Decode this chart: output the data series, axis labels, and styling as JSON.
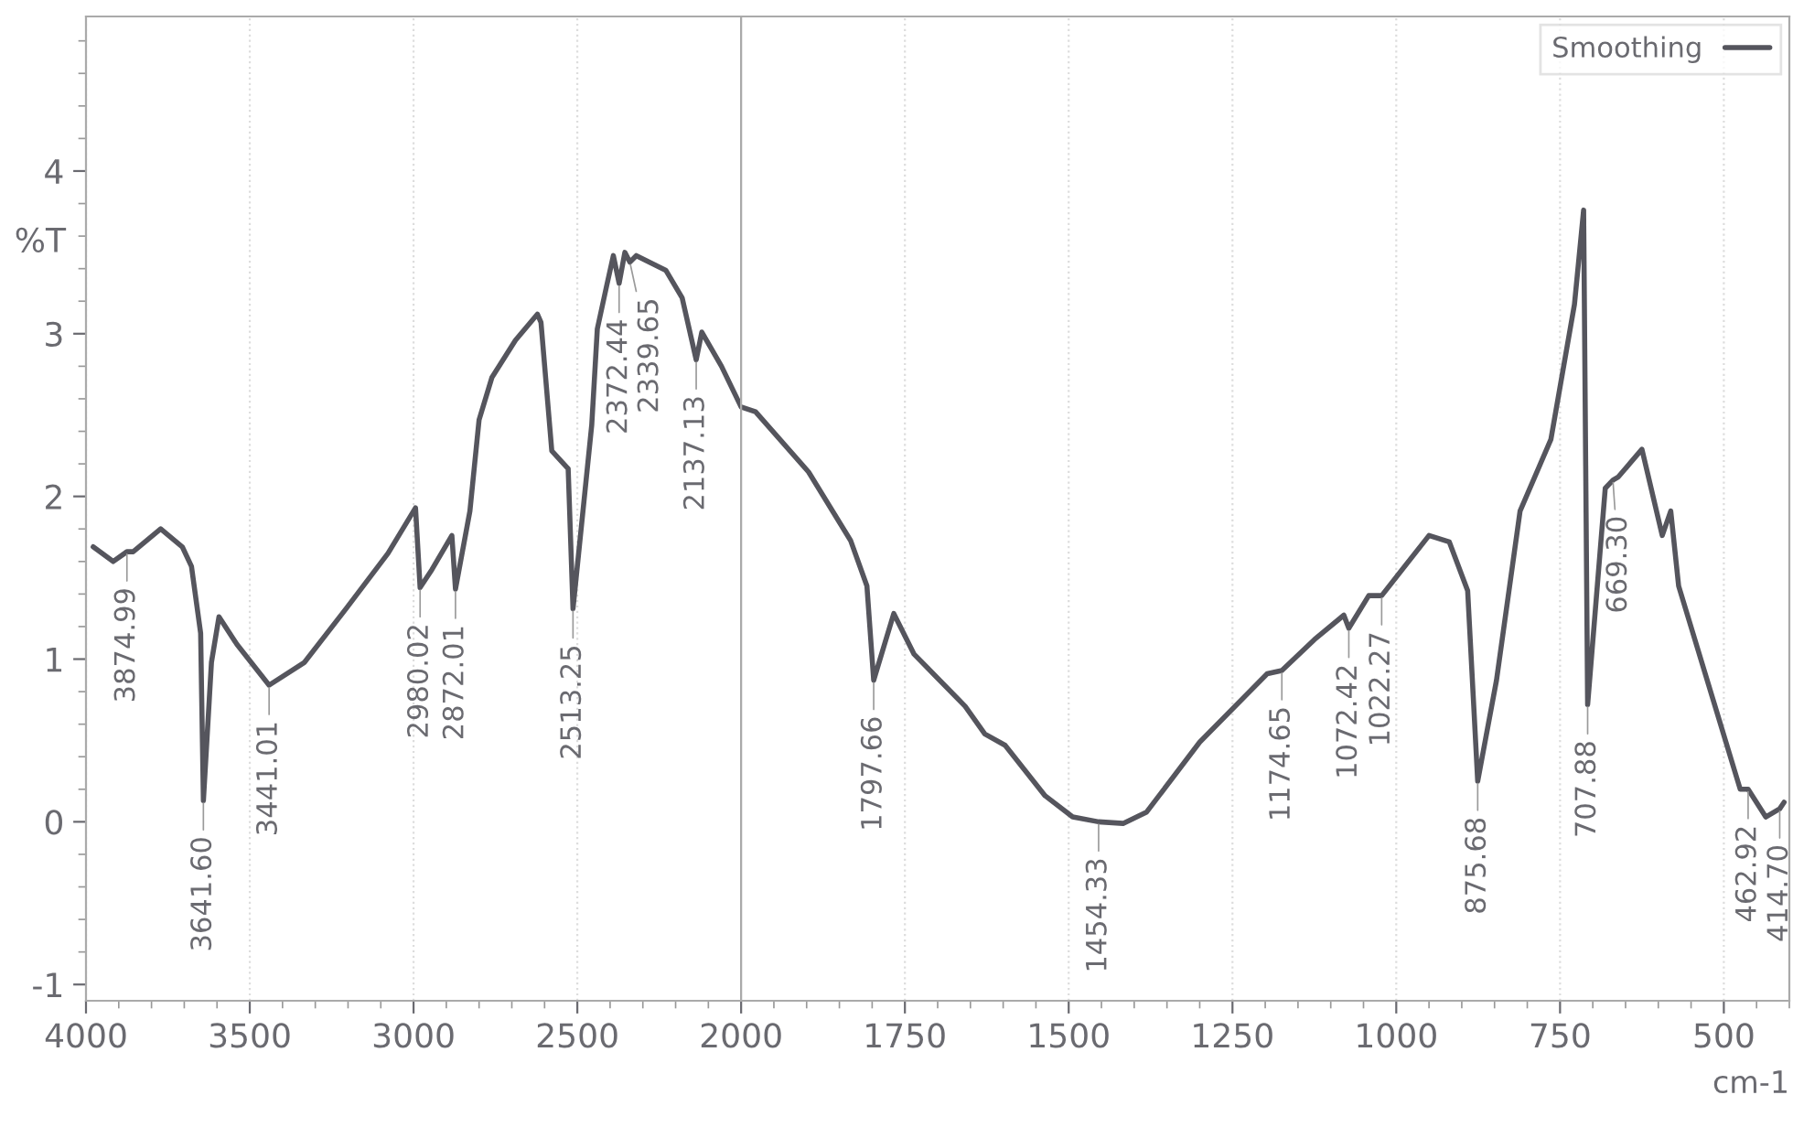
{
  "chart_data": [
    {
      "type": "line",
      "ylabel": "%T",
      "grid": "x",
      "xlim": [
        4000,
        2000
      ],
      "ylim": [
        -1.1,
        4.95
      ],
      "xticks": [
        4000,
        {
          "value": 3900,
          "label": null
        },
        {
          "value": 3800,
          "label": null
        },
        {
          "value": 3700,
          "label": null
        },
        {
          "value": 3600,
          "label": null
        },
        3500,
        {
          "value": 3400,
          "label": null
        },
        {
          "value": 3300,
          "label": null
        },
        {
          "value": 3200,
          "label": null
        },
        {
          "value": 3100,
          "label": null
        },
        3000,
        {
          "value": 2900,
          "label": null
        },
        {
          "value": 2800,
          "label": null
        },
        {
          "value": 2700,
          "label": null
        },
        {
          "value": 2600,
          "label": null
        },
        2500,
        {
          "value": 2400,
          "label": null
        },
        {
          "value": 2300,
          "label": null
        },
        {
          "value": 2200,
          "label": null
        },
        {
          "value": 2100,
          "label": null
        },
        2000
      ],
      "yticks": [
        -1,
        {
          "value": -0.8,
          "label": null
        },
        {
          "value": -0.6,
          "label": null
        },
        {
          "value": -0.4,
          "label": null
        },
        {
          "value": -0.2,
          "label": null
        },
        0,
        {
          "value": 0.2,
          "label": null
        },
        {
          "value": 0.4,
          "label": null
        },
        {
          "value": 0.6,
          "label": null
        },
        {
          "value": 0.8,
          "label": null
        },
        1,
        {
          "value": 1.2,
          "label": null
        },
        {
          "value": 1.4,
          "label": null
        },
        {
          "value": 1.6,
          "label": null
        },
        {
          "value": 1.8,
          "label": null
        },
        2,
        {
          "value": 2.2,
          "label": null
        },
        {
          "value": 2.4,
          "label": null
        },
        {
          "value": 2.6,
          "label": null
        },
        {
          "value": 2.8,
          "label": null
        },
        3,
        {
          "value": 3.2,
          "label": null
        },
        {
          "value": 3.4,
          "label": null
        },
        {
          "value": 3.6,
          "label": null
        },
        {
          "value": 3.8,
          "label": null
        },
        4,
        {
          "value": 4.2,
          "label": null
        },
        {
          "value": 4.4,
          "label": null
        },
        {
          "value": 4.6,
          "label": null
        },
        {
          "value": 4.8,
          "label": null
        }
      ],
      "series": [
        {
          "color": "#55555d",
          "x": [
            3978,
            3917,
            3874.99,
            3856,
            3772,
            3706,
            3678,
            3650,
            3641.6,
            3617,
            3594,
            3539,
            3441.01,
            3333,
            3206,
            3078,
            2994,
            2980.02,
            2944,
            2883,
            2872.01,
            2828,
            2800,
            2761,
            2689,
            2622,
            2611,
            2578,
            2528,
            2513.25,
            2456,
            2439,
            2411,
            2390,
            2372.44,
            2355,
            2339.65,
            2320,
            2230,
            2180,
            2137.13,
            2120,
            2060,
            2000
          ],
          "values": [
            1.69,
            1.6,
            1.66,
            1.66,
            1.8,
            1.69,
            1.57,
            1.16,
            0.13,
            0.98,
            1.26,
            1.09,
            0.84,
            0.98,
            1.31,
            1.65,
            1.93,
            1.44,
            1.55,
            1.76,
            1.43,
            1.91,
            2.47,
            2.73,
            2.96,
            3.12,
            3.07,
            2.28,
            2.17,
            1.31,
            2.44,
            3.03,
            3.29,
            3.48,
            3.31,
            3.5,
            3.44,
            3.48,
            3.39,
            3.22,
            2.84,
            3.01,
            2.8,
            2.55
          ]
        }
      ],
      "annotations": [
        {
          "text": "3874.99",
          "x": 3874.99,
          "y": 1.66
        },
        {
          "text": "3641.60",
          "x": 3641.6,
          "y": 0.13
        },
        {
          "text": "3441.01",
          "x": 3441.01,
          "y": 0.84
        },
        {
          "text": "2980.02",
          "x": 2980.02,
          "y": 1.44
        },
        {
          "text": "2872.01",
          "x": 2872.01,
          "y": 1.43
        },
        {
          "text": "2513.25",
          "x": 2513.25,
          "y": 1.31
        },
        {
          "text": "2372.44",
          "x": 2372.44,
          "y": 3.31
        },
        {
          "text": "2339.65",
          "x": 2339.65,
          "y": 3.44
        },
        {
          "text": "2137.13",
          "x": 2137.13,
          "y": 2.84
        }
      ]
    },
    {
      "type": "line",
      "xlabel": "cm-1",
      "grid": "x",
      "legend": "top right",
      "tick_labels": "x",
      "xlim": [
        2000,
        400
      ],
      "ylim": [
        -1.1,
        4.95
      ],
      "xticks": [
        {
          "value": 1950,
          "label": null
        },
        {
          "value": 1900,
          "label": null
        },
        {
          "value": 1850,
          "label": null
        },
        {
          "value": 1800,
          "label": null
        },
        1750,
        {
          "value": 1700,
          "label": null
        },
        {
          "value": 1650,
          "label": null
        },
        {
          "value": 1600,
          "label": null
        },
        {
          "value": 1550,
          "label": null
        },
        1500,
        {
          "value": 1450,
          "label": null
        },
        {
          "value": 1400,
          "label": null
        },
        {
          "value": 1350,
          "label": null
        },
        {
          "value": 1300,
          "label": null
        },
        1250,
        {
          "value": 1200,
          "label": null
        },
        {
          "value": 1150,
          "label": null
        },
        {
          "value": 1100,
          "label": null
        },
        {
          "value": 1050,
          "label": null
        },
        1000,
        {
          "value": 950,
          "label": null
        },
        {
          "value": 900,
          "label": null
        },
        {
          "value": 850,
          "label": null
        },
        {
          "value": 800,
          "label": null
        },
        750,
        {
          "value": 700,
          "label": null
        },
        {
          "value": 650,
          "label": null
        },
        {
          "value": 600,
          "label": null
        },
        {
          "value": 550,
          "label": null
        },
        500,
        {
          "value": 450,
          "label": null
        },
        {
          "value": 400,
          "label": null
        }
      ],
      "series": [
        {
          "name": "Smoothing",
          "color": "#55555d",
          "x": [
            2000,
            1978,
            1897,
            1833,
            1808,
            1797.66,
            1767,
            1736,
            1658,
            1628,
            1597,
            1536,
            1494,
            1454.33,
            1417,
            1381,
            1300,
            1197,
            1174.65,
            1125,
            1080,
            1072.42,
            1042,
            1022.27,
            950,
            919,
            891,
            875.68,
            847,
            811,
            764,
            728,
            714,
            707.88,
            681,
            669.3,
            661,
            625,
            594,
            581,
            569,
            475,
            462.92,
            436,
            414.7,
            408
          ],
          "values": [
            2.55,
            2.52,
            2.15,
            1.73,
            1.45,
            0.87,
            1.28,
            1.03,
            0.71,
            0.54,
            0.47,
            0.16,
            0.03,
            0.0,
            -0.01,
            0.06,
            0.49,
            0.91,
            0.93,
            1.12,
            1.27,
            1.19,
            1.39,
            1.39,
            1.76,
            1.72,
            1.42,
            0.25,
            0.87,
            1.91,
            2.35,
            3.18,
            3.76,
            0.72,
            2.05,
            2.1,
            2.12,
            2.29,
            1.76,
            1.91,
            1.45,
            0.2,
            0.2,
            0.03,
            0.08,
            0.12
          ]
        }
      ],
      "annotations": [
        {
          "text": "1797.66",
          "x": 1797.66,
          "y": 0.87
        },
        {
          "text": "1454.33",
          "x": 1454.33,
          "y": 0.0
        },
        {
          "text": "1174.65",
          "x": 1174.65,
          "y": 0.93
        },
        {
          "text": "1072.42",
          "x": 1072.42,
          "y": 1.19
        },
        {
          "text": "1022.27",
          "x": 1022.27,
          "y": 1.39
        },
        {
          "text": "875.68",
          "x": 875.68,
          "y": 0.25
        },
        {
          "text": "707.88",
          "x": 707.88,
          "y": 0.72
        },
        {
          "text": "669.30",
          "x": 669.3,
          "y": 2.1
        },
        {
          "text": "462.92",
          "x": 462.92,
          "y": 0.2
        },
        {
          "text": "414.70",
          "x": 414.7,
          "y": 0.08
        }
      ]
    }
  ]
}
